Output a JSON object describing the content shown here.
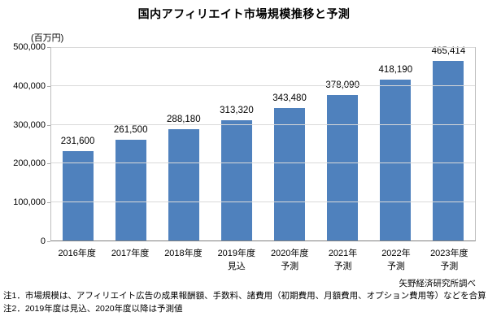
{
  "page": {
    "background_color": "#ffffff",
    "text_color": "#000000"
  },
  "chart_data": {
    "type": "bar",
    "title": "国内アフィリエイト市場規模推移と予測",
    "unit_label": "(百万円)",
    "xlabel": "",
    "ylabel": "",
    "ylim": [
      0,
      500000
    ],
    "ytick_step": 100000,
    "ytick_labels": [
      "0",
      "100,000",
      "200,000",
      "300,000",
      "400,000",
      "500,000"
    ],
    "grid": true,
    "legend": false,
    "categories": [
      [
        "2016年度"
      ],
      [
        "2017年度"
      ],
      [
        "2018年度"
      ],
      [
        "2019年度",
        "見込"
      ],
      [
        "2020年度",
        "予測"
      ],
      [
        "2021年",
        "予測"
      ],
      [
        "2022年",
        "予測"
      ],
      [
        "2023年度",
        "予測"
      ]
    ],
    "values": [
      231600,
      261500,
      288180,
      313320,
      343480,
      378090,
      418190,
      465414
    ],
    "value_labels": [
      "231,600",
      "261,500",
      "288,180",
      "313,320",
      "343,480",
      "378,090",
      "418,190",
      "465,414"
    ],
    "bar_color": "#4f81bd",
    "grid_color": "#d9d9d9",
    "plot_border_color": "#bfbfbf",
    "axis_line_color": "#7f7f7f"
  },
  "source": "矢野経済研究所調べ",
  "notes": [
    "注1．市場規模は、アフィリエイト広告の成果報酬額、手数料、諸費用（初期費用、月額費用、オプション費用等）などを合算し、算出した。",
    "注2．2019年度は見込、2020年度以降は予測値"
  ]
}
